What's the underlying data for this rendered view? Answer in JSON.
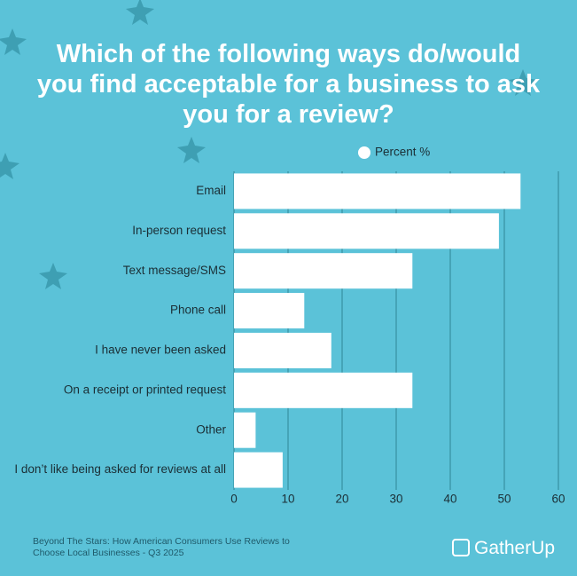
{
  "chart_data": {
    "type": "bar",
    "orientation": "horizontal",
    "title": "Which of the following ways do/would you find acceptable for a business to ask you for a review?",
    "categories": [
      "Email",
      "In-person request",
      "Text message/SMS",
      "Phone call",
      "I have never been asked",
      "On a receipt or printed request",
      "Other",
      "I don’t like being asked for reviews at all"
    ],
    "series": [
      {
        "name": "Percent %",
        "color": "#ffffff",
        "values": [
          53,
          49,
          33,
          13,
          18,
          33,
          4,
          9
        ]
      }
    ],
    "xlim": [
      0,
      60
    ],
    "xticks": [
      0,
      10,
      20,
      30,
      40,
      50,
      60
    ],
    "grid": true,
    "legend": "top"
  },
  "footer": {
    "source": "Beyond The Stars: How American Consumers Use Reviews to Choose Local Businesses - Q3 2025",
    "logo": "GatherUp"
  }
}
